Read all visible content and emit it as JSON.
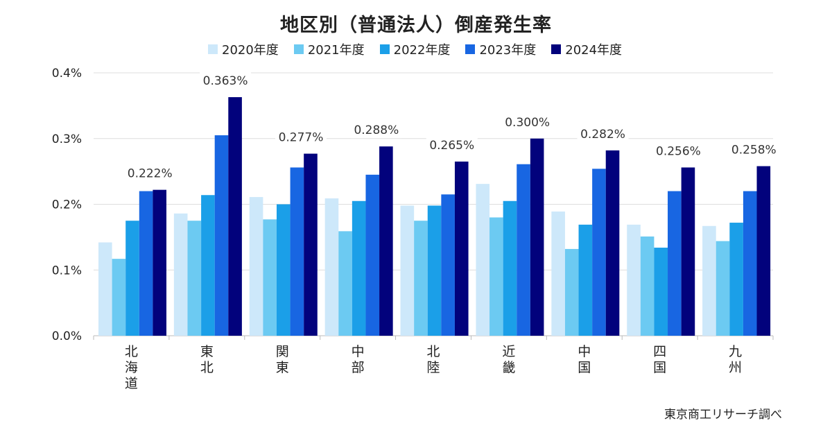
{
  "chart_data": {
    "type": "bar",
    "title": "地区別（普通法人）倒産発生率",
    "categories": [
      "北海道",
      "東北",
      "関東",
      "中部",
      "北陸",
      "近畿",
      "中国",
      "四国",
      "九州"
    ],
    "series": [
      {
        "name": "2020年度",
        "color": "#cde8fa",
        "values": [
          0.142,
          0.186,
          0.211,
          0.209,
          0.198,
          0.231,
          0.189,
          0.169,
          0.167
        ]
      },
      {
        "name": "2021年度",
        "color": "#6ccaf2",
        "values": [
          0.117,
          0.175,
          0.177,
          0.159,
          0.175,
          0.18,
          0.132,
          0.151,
          0.144
        ]
      },
      {
        "name": "2022年度",
        "color": "#1b9fe8",
        "values": [
          0.175,
          0.214,
          0.2,
          0.205,
          0.198,
          0.205,
          0.169,
          0.134,
          0.172
        ]
      },
      {
        "name": "2023年度",
        "color": "#1866e2",
        "values": [
          0.22,
          0.305,
          0.256,
          0.245,
          0.215,
          0.261,
          0.254,
          0.22,
          0.22
        ]
      },
      {
        "name": "2024年度",
        "color": "#02027c",
        "values": [
          0.222,
          0.363,
          0.277,
          0.288,
          0.265,
          0.3,
          0.282,
          0.256,
          0.258
        ]
      }
    ],
    "data_labels": [
      "0.222%",
      "0.363%",
      "0.277%",
      "0.288%",
      "0.265%",
      "0.300%",
      "0.282%",
      "0.256%",
      "0.258%"
    ],
    "yticks": [
      "0.0%",
      "0.1%",
      "0.2%",
      "0.3%",
      "0.4%"
    ],
    "ylim": [
      0,
      0.4
    ],
    "grid": true,
    "legend": "top"
  },
  "source_note": "東京商工リサーチ調べ"
}
